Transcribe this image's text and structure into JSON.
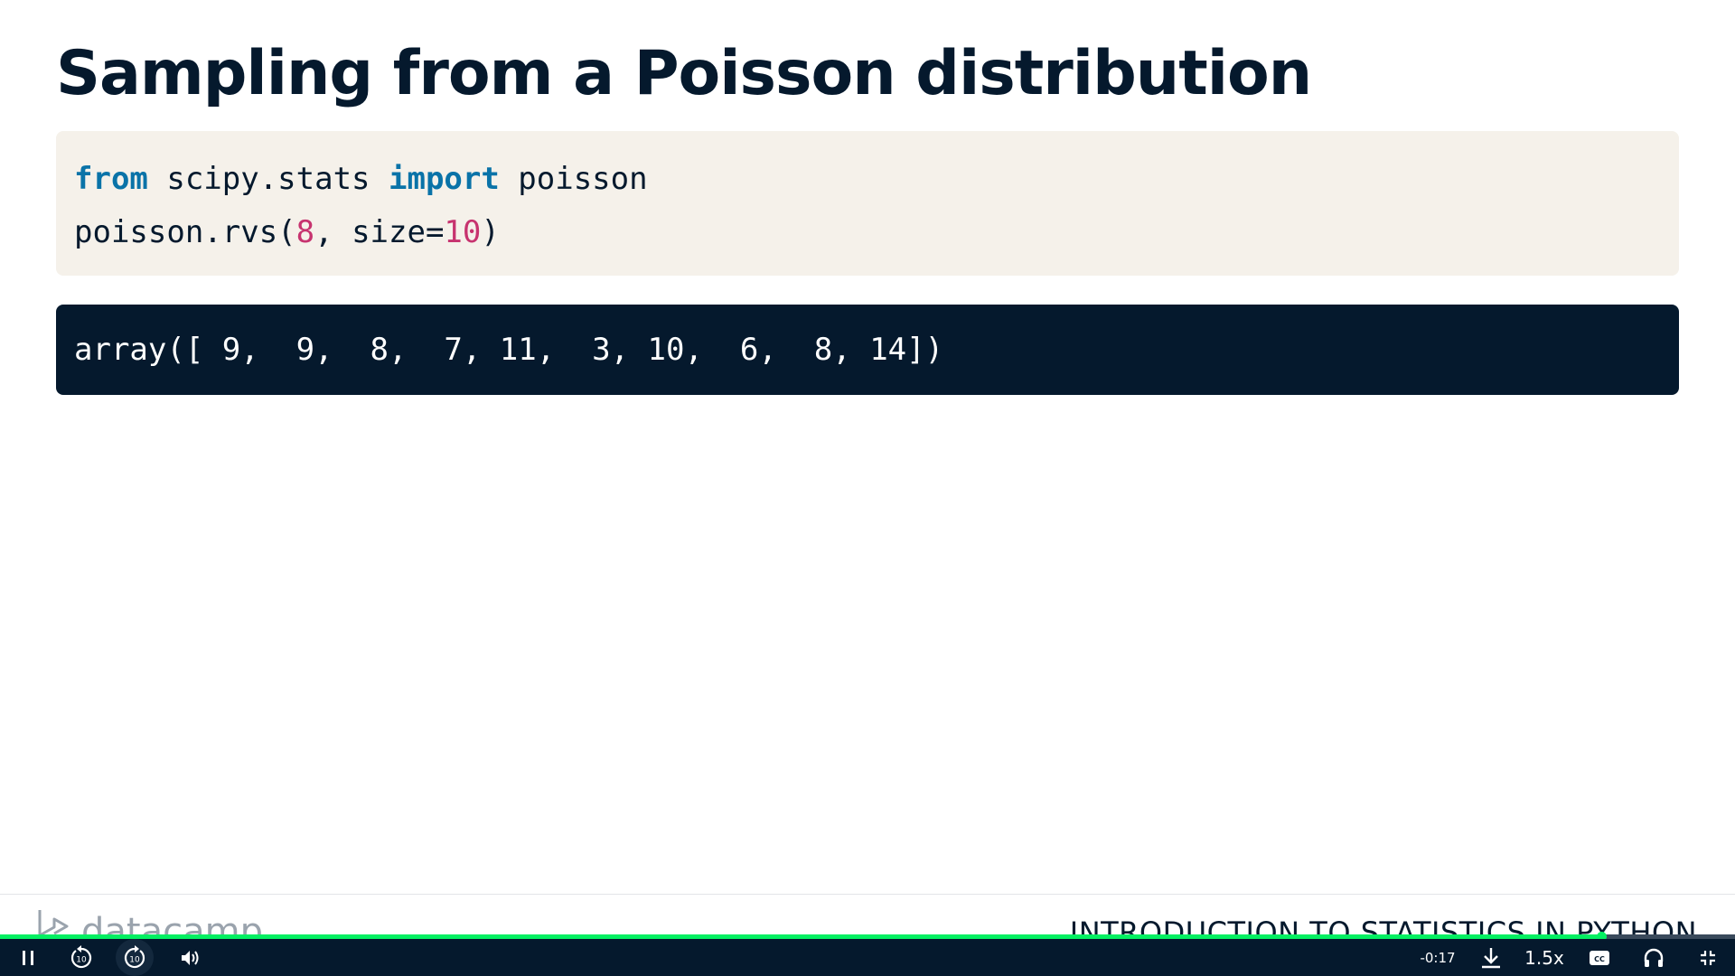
{
  "slide": {
    "title": "Sampling from a Poisson distribution",
    "code": {
      "line1": {
        "kw1": "from",
        "mid": " scipy.stats ",
        "kw2": "import",
        "end": " poisson"
      },
      "line2": {
        "start": "poisson.rvs(",
        "arg1": "8",
        "mid": ", size=",
        "arg2": "10",
        "end": ")"
      }
    },
    "output": "array([ 9,  9,  8,  7, 11,  3, 10,  6,  8, 14])",
    "footer": {
      "logo_text": "datacamp",
      "course_title": "INTRODUCTION TO STATISTICS IN PYTHON"
    }
  },
  "player": {
    "progress_fraction": 0.923,
    "time_remaining": "-0:17",
    "speed": "1.5x",
    "rewind_seconds": "10",
    "forward_seconds": "10",
    "colors": {
      "accent": "#03ef62",
      "bar_bg": "#05192d"
    },
    "icons": [
      "pause-icon",
      "rewind-10-icon",
      "forward-10-icon",
      "volume-icon",
      "download-icon",
      "captions-icon",
      "headphones-icon",
      "exit-fullscreen-icon"
    ]
  }
}
